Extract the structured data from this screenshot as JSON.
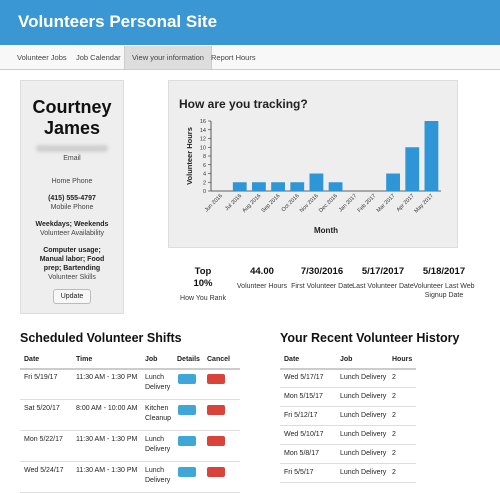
{
  "header": {
    "title": "Volunteers Personal Site"
  },
  "nav": {
    "tabs": [
      "Volunteer Jobs",
      "Job Calendar",
      "View your information",
      "Report Hours"
    ]
  },
  "profile": {
    "name": "Courtney James",
    "email_label": "Email",
    "home_phone_label": "Home Phone",
    "mobile_phone": "(415) 555-4797",
    "mobile_phone_label": "Mobile Phone",
    "availability": "Weekdays; Weekends",
    "availability_label": "Volunteer Availability",
    "skills": "Computer usage; Manual labor; Food prep; Bartending",
    "skills_label": "Volunteer Skills",
    "button": "Update"
  },
  "chart_data": {
    "type": "bar",
    "title": "How are you tracking?",
    "x_label": "Month",
    "y_label": "Volunteer Hours",
    "categories": [
      "Jun 2016",
      "Jul 2016",
      "Aug 2016",
      "Sep 2016",
      "Oct 2016",
      "Nov 2016",
      "Dec 2016",
      "Jan 2017",
      "Feb 2017",
      "Mar 2017",
      "Apr 2017",
      "May 2017"
    ],
    "values": [
      0,
      2,
      2,
      2,
      2,
      4,
      2,
      0,
      0,
      4,
      10,
      16
    ],
    "color": "#2e95d6",
    "ylim": [
      0,
      16
    ],
    "yticks": [
      0,
      2,
      4,
      6,
      8,
      10,
      12,
      14,
      16
    ],
    "grid": false
  },
  "stats": [
    {
      "value": "Top 10%",
      "label": "How You Rank"
    },
    {
      "value": "44.00",
      "label": "Volunteer Hours"
    },
    {
      "value": "7/30/2016",
      "label": "First Volunteer Date"
    },
    {
      "value": "5/17/2017",
      "label": "Last Volunteer Date"
    },
    {
      "value": "5/18/2017",
      "label": "Volunteer Last Web Signup Date"
    }
  ],
  "shifts": {
    "title": "Scheduled Volunteer Shifts",
    "columns": [
      "Date",
      "Time",
      "Job",
      "Details",
      "Cancel"
    ],
    "rows": [
      [
        "Fri 5/19/17",
        "11:30 AM - 1:30 PM",
        "Lunch Delivery"
      ],
      [
        "Sat 5/20/17",
        "8:00 AM - 10:00 AM",
        "Kitchen Cleanup"
      ],
      [
        "Mon 5/22/17",
        "11:30 AM - 1:30 PM",
        "Lunch Delivery"
      ],
      [
        "Wed 5/24/17",
        "11:30 AM - 1:30 PM",
        "Lunch Delivery"
      ]
    ]
  },
  "history": {
    "title": "Your Recent Volunteer History",
    "columns": [
      "Date",
      "Job",
      "Hours"
    ],
    "rows": [
      [
        "Wed 5/17/17",
        "Lunch Delivery",
        2
      ],
      [
        "Mon 5/15/17",
        "Lunch Delivery",
        2
      ],
      [
        "Fri 5/12/17",
        "Lunch Delivery",
        2
      ],
      [
        "Wed 5/10/17",
        "Lunch Delivery",
        2
      ],
      [
        "Mon 5/8/17",
        "Lunch Delivery",
        2
      ],
      [
        "Fri 5/5/17",
        "Lunch Delivery",
        2
      ]
    ]
  }
}
